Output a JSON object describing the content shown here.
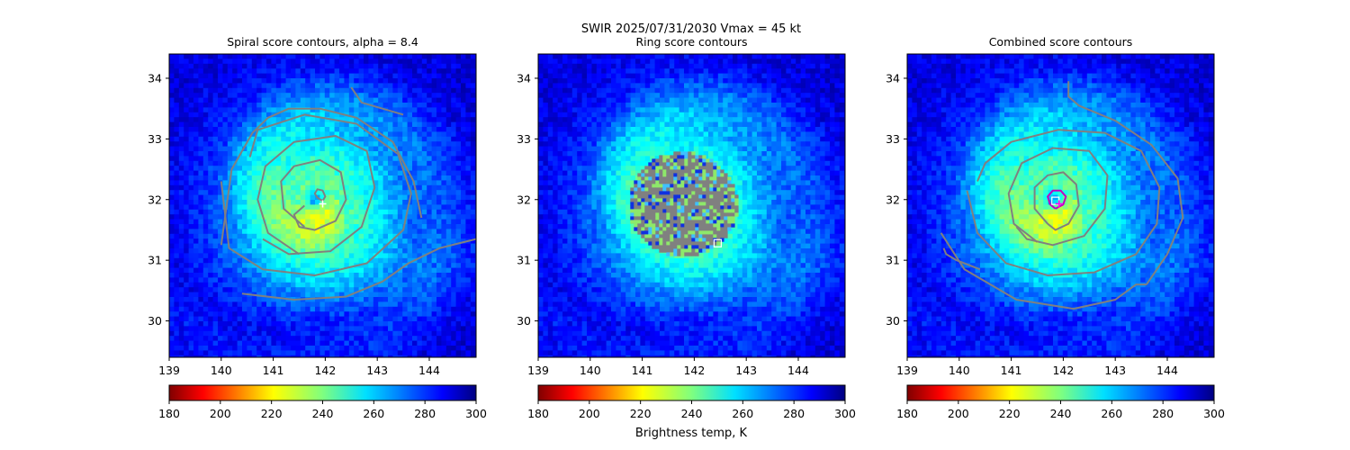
{
  "figure": {
    "suptitle": "SWIR  2025/07/31/2030    Vmax = 45 kt",
    "colorbar_label": "Brightness temp, K"
  },
  "chart_data": [
    {
      "type": "heatmap",
      "title": "Spiral score contours, alpha =  8.4",
      "colormap": "jet_r",
      "xlim": [
        139,
        144.9
      ],
      "ylim": [
        29.4,
        34.4
      ],
      "x_ticks": [
        "139",
        "140",
        "141",
        "142",
        "143",
        "144"
      ],
      "y_ticks": [
        "30",
        "31",
        "32",
        "33",
        "34"
      ],
      "colorbar": {
        "range": [
          180,
          300
        ],
        "ticks": [
          "180",
          "200",
          "220",
          "240",
          "260",
          "280",
          "300"
        ]
      },
      "storm_center": [
        141.85,
        32.0
      ],
      "marker": {
        "symbol": "plus",
        "lon": 141.95,
        "lat": 31.93,
        "color": "#ffffff"
      },
      "contours": [
        {
          "level": 1,
          "color": "#808080",
          "lon": [
            141.85,
            141.95,
            142.0,
            141.95,
            141.85,
            141.8,
            141.85
          ],
          "lat": [
            32.03,
            31.98,
            32.05,
            32.15,
            32.17,
            32.1,
            32.03
          ]
        },
        {
          "level": 2,
          "color": "#808080",
          "lon": [
            141.6,
            141.2,
            141.15,
            141.4,
            141.9,
            142.3,
            142.4,
            142.2,
            141.8,
            141.5,
            141.4,
            141.6
          ],
          "lat": [
            31.55,
            31.85,
            32.3,
            32.55,
            32.65,
            32.45,
            32.0,
            31.65,
            31.5,
            31.55,
            31.75,
            31.9
          ]
        },
        {
          "level": 3,
          "color": "#808080",
          "lon": [
            141.5,
            140.9,
            140.7,
            140.85,
            141.4,
            142.2,
            142.8,
            142.95,
            142.7,
            142.1,
            141.3,
            140.8
          ],
          "lat": [
            31.1,
            31.45,
            32.0,
            32.55,
            32.95,
            33.05,
            32.8,
            32.2,
            31.55,
            31.15,
            31.1,
            31.35
          ]
        },
        {
          "level": 4,
          "color": "#808080",
          "lon": [
            140.0,
            140.15,
            140.8,
            141.8,
            142.8,
            143.5,
            143.65,
            143.4,
            142.6,
            141.6,
            140.7,
            140.55
          ],
          "lat": [
            32.3,
            31.2,
            30.85,
            30.75,
            30.95,
            31.5,
            32.1,
            32.75,
            33.25,
            33.4,
            33.15,
            32.7
          ]
        },
        {
          "level": 5,
          "color": "#808080",
          "lon": [
            140.0,
            140.2,
            140.6,
            140.9,
            141.3,
            141.9,
            142.6,
            143.3,
            143.7,
            143.85
          ],
          "lat": [
            31.25,
            32.5,
            33.1,
            33.35,
            33.5,
            33.5,
            33.35,
            32.95,
            32.3,
            31.7
          ]
        },
        {
          "level": 5,
          "color": "#808080",
          "lon": [
            140.4,
            141.4,
            142.4,
            143.1,
            143.6,
            144.2,
            144.9
          ],
          "lat": [
            30.45,
            30.35,
            30.4,
            30.65,
            30.95,
            31.2,
            31.35
          ]
        },
        {
          "level": 6,
          "color": "#808080",
          "lon": [
            142.5,
            142.7,
            143.1,
            143.5
          ],
          "lat": [
            33.85,
            33.6,
            33.5,
            33.4
          ]
        }
      ]
    },
    {
      "type": "heatmap",
      "title": "Ring score contours",
      "colormap": "jet_r",
      "xlim": [
        139,
        144.9
      ],
      "ylim": [
        29.4,
        34.4
      ],
      "x_ticks": [
        "139",
        "140",
        "141",
        "142",
        "143",
        "144"
      ],
      "y_ticks": [
        "30",
        "31",
        "32",
        "33",
        "34"
      ],
      "colorbar": {
        "range": [
          180,
          300
        ],
        "ticks": [
          "180",
          "200",
          "220",
          "240",
          "260",
          "280",
          "300"
        ]
      },
      "storm_center": [
        141.85,
        32.0
      ],
      "marker": {
        "symbol": "square",
        "lon": 142.45,
        "lat": 31.28,
        "color": "#ffffff"
      },
      "ring_region": {
        "lon_center": 141.75,
        "lat_center": 31.95,
        "radius_deg": 1.05,
        "color": "#808080"
      },
      "contours": []
    },
    {
      "type": "heatmap",
      "title": "Combined score contours",
      "colormap": "jet_r",
      "xlim": [
        139,
        144.9
      ],
      "ylim": [
        29.4,
        34.4
      ],
      "x_ticks": [
        "139",
        "140",
        "141",
        "142",
        "143",
        "144"
      ],
      "y_ticks": [
        "30",
        "31",
        "32",
        "33",
        "34"
      ],
      "colorbar": {
        "range": [
          180,
          300
        ],
        "ticks": [
          "180",
          "200",
          "220",
          "240",
          "260",
          "280",
          "300"
        ]
      },
      "storm_center": [
        141.85,
        32.0
      ],
      "marker": {
        "symbol": "square",
        "lon": 141.85,
        "lat": 31.98,
        "color": "#ffffff"
      },
      "marker2": {
        "symbol": "plus",
        "lon": 141.92,
        "lat": 31.93,
        "color": "#ff00ff"
      },
      "contours": [
        {
          "level": 1,
          "color": "#c000c0",
          "lon": [
            141.85,
            142.0,
            142.05,
            141.95,
            141.8,
            141.7,
            141.75,
            141.85
          ],
          "lat": [
            31.85,
            31.92,
            32.05,
            32.15,
            32.15,
            32.05,
            31.92,
            31.85
          ]
        },
        {
          "level": 2,
          "color": "#808080",
          "lon": [
            141.7,
            141.45,
            141.45,
            141.7,
            142.0,
            142.25,
            142.3,
            142.1,
            141.85,
            141.7
          ],
          "lat": [
            31.6,
            31.85,
            32.2,
            32.4,
            32.45,
            32.25,
            31.9,
            31.6,
            31.5,
            31.6
          ]
        },
        {
          "level": 3,
          "color": "#808080",
          "lon": [
            141.5,
            141.05,
            140.95,
            141.2,
            141.8,
            142.5,
            142.85,
            142.8,
            142.4,
            141.8,
            141.3,
            141.1
          ],
          "lat": [
            31.3,
            31.6,
            32.1,
            32.6,
            32.85,
            32.8,
            32.4,
            31.85,
            31.4,
            31.25,
            31.35,
            31.55
          ]
        },
        {
          "level": 4,
          "color": "#808080",
          "lon": [
            140.15,
            140.35,
            140.9,
            141.7,
            142.6,
            143.4,
            143.8,
            143.85,
            143.5,
            142.8,
            141.9,
            141.0,
            140.5,
            140.35
          ],
          "lat": [
            32.15,
            31.45,
            30.95,
            30.75,
            30.8,
            31.1,
            31.6,
            32.2,
            32.8,
            33.1,
            33.15,
            32.95,
            32.6,
            32.3
          ]
        },
        {
          "level": 5,
          "color": "#808080",
          "lon": [
            139.65,
            140.1,
            141.1,
            142.2,
            143.0,
            143.4,
            143.6
          ],
          "lat": [
            31.45,
            30.85,
            30.35,
            30.2,
            30.35,
            30.6,
            30.6
          ]
        },
        {
          "level": 5,
          "color": "#808080",
          "lon": [
            143.6,
            144.0,
            144.3,
            144.2,
            143.7,
            143.0,
            142.3,
            142.1,
            142.1
          ],
          "lat": [
            30.6,
            31.1,
            31.7,
            32.35,
            32.9,
            33.3,
            33.55,
            33.7,
            33.95
          ]
        },
        {
          "level": 6,
          "color": "#808080",
          "lon": [
            140.4,
            139.95,
            139.75,
            139.7
          ],
          "lat": [
            30.85,
            31.0,
            31.1,
            31.2
          ]
        }
      ]
    }
  ]
}
